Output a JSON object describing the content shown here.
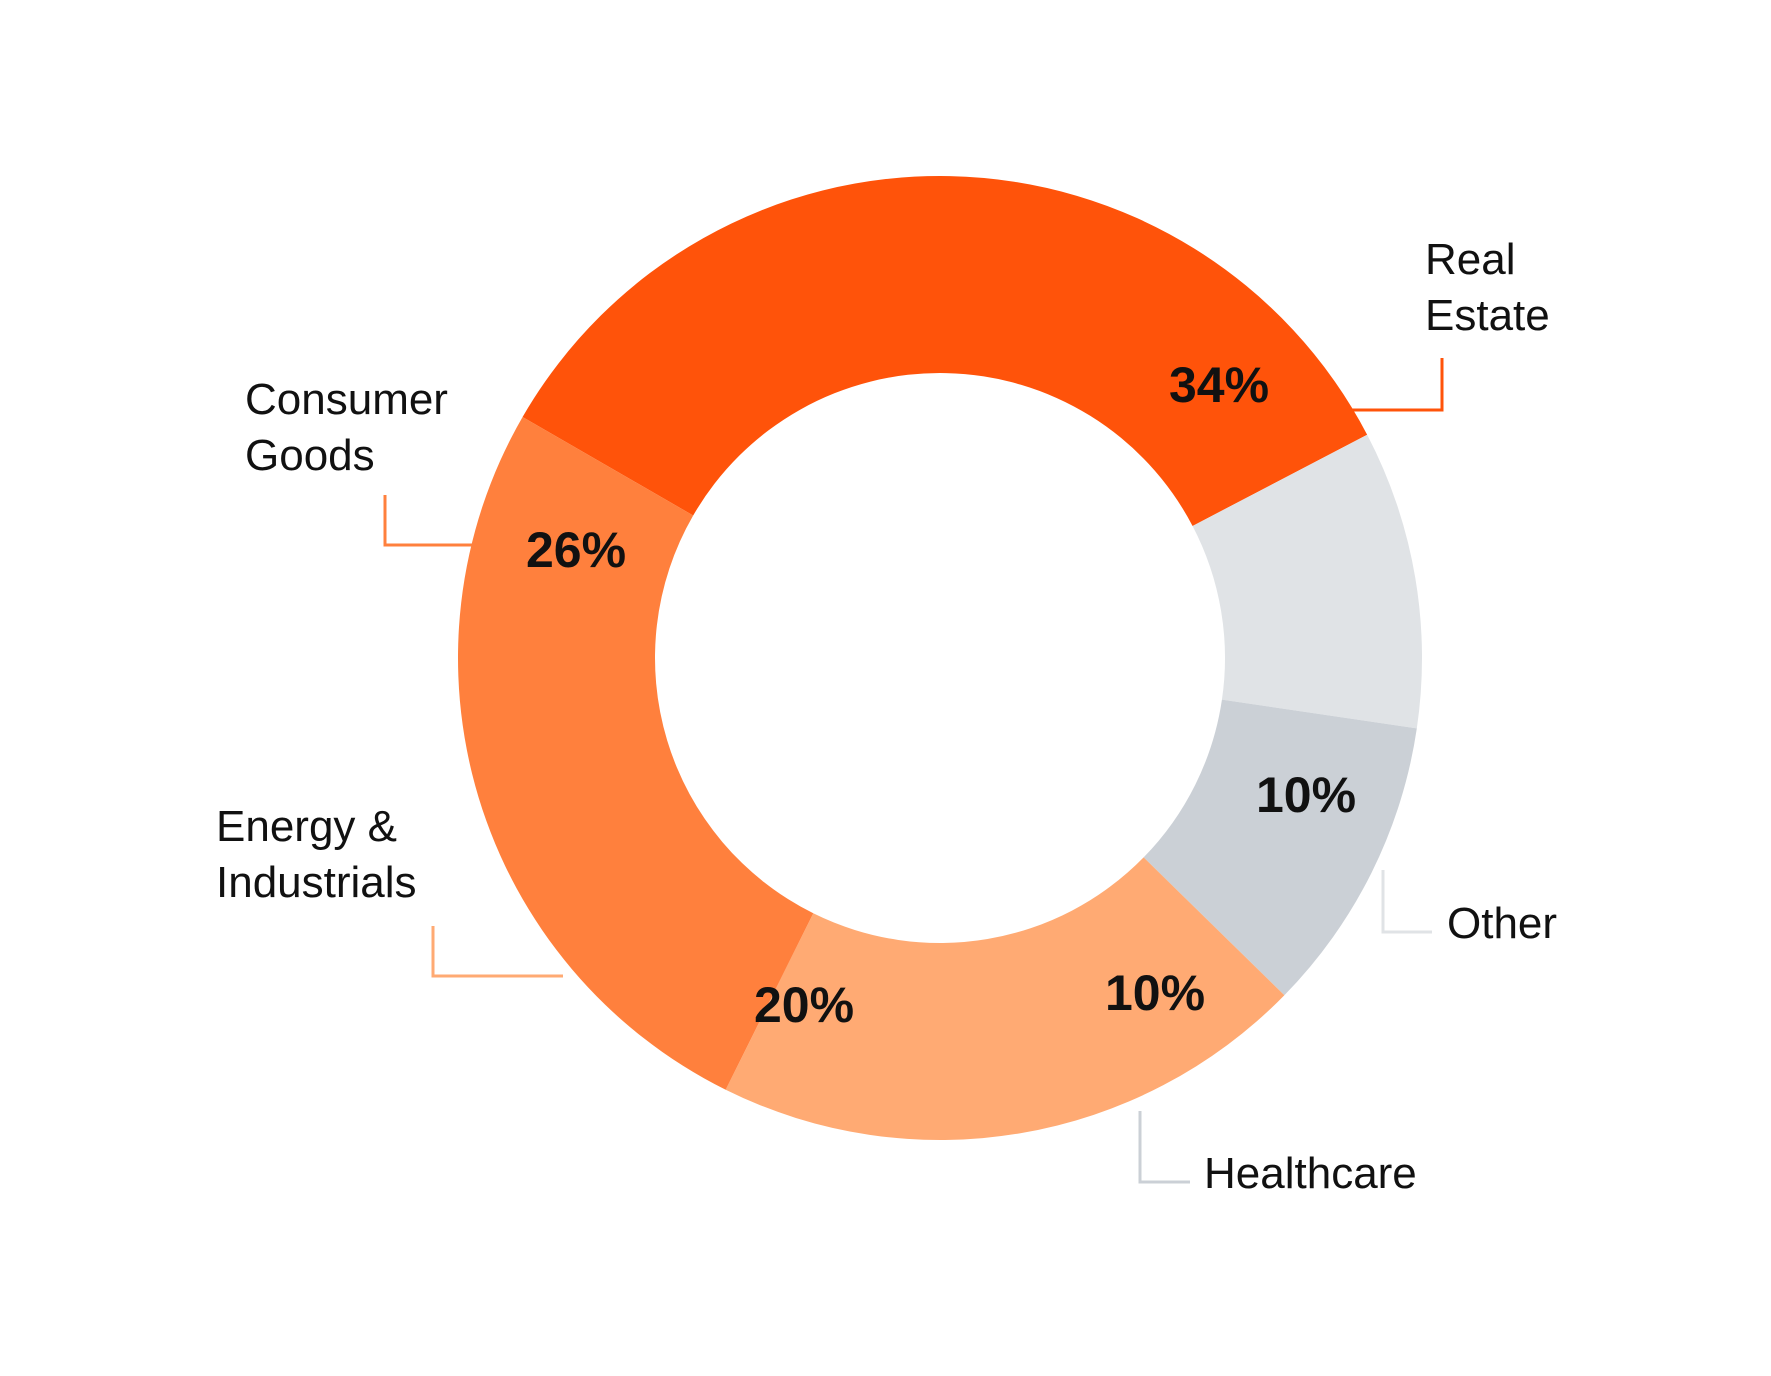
{
  "chart_data": {
    "type": "pie",
    "donut": true,
    "legend": "none",
    "slices": [
      {
        "label_lines": [
          "Real",
          "Estate"
        ],
        "value": 34,
        "value_label": "34%",
        "color": "#FF530A"
      },
      {
        "label_lines": [
          "Other"
        ],
        "value": 10,
        "value_label": "10%",
        "color": "#E0E3E6"
      },
      {
        "label_lines": [
          "Healthcare"
        ],
        "value": 10,
        "value_label": "10%",
        "color": "#CBD0D6"
      },
      {
        "label_lines": [
          "Energy &",
          "Industrials"
        ],
        "value": 20,
        "value_label": "20%",
        "color": "#FFAA73"
      },
      {
        "label_lines": [
          "Consumer",
          "Goods"
        ],
        "value": 26,
        "value_label": "26%",
        "color": "#FF803D"
      }
    ]
  }
}
